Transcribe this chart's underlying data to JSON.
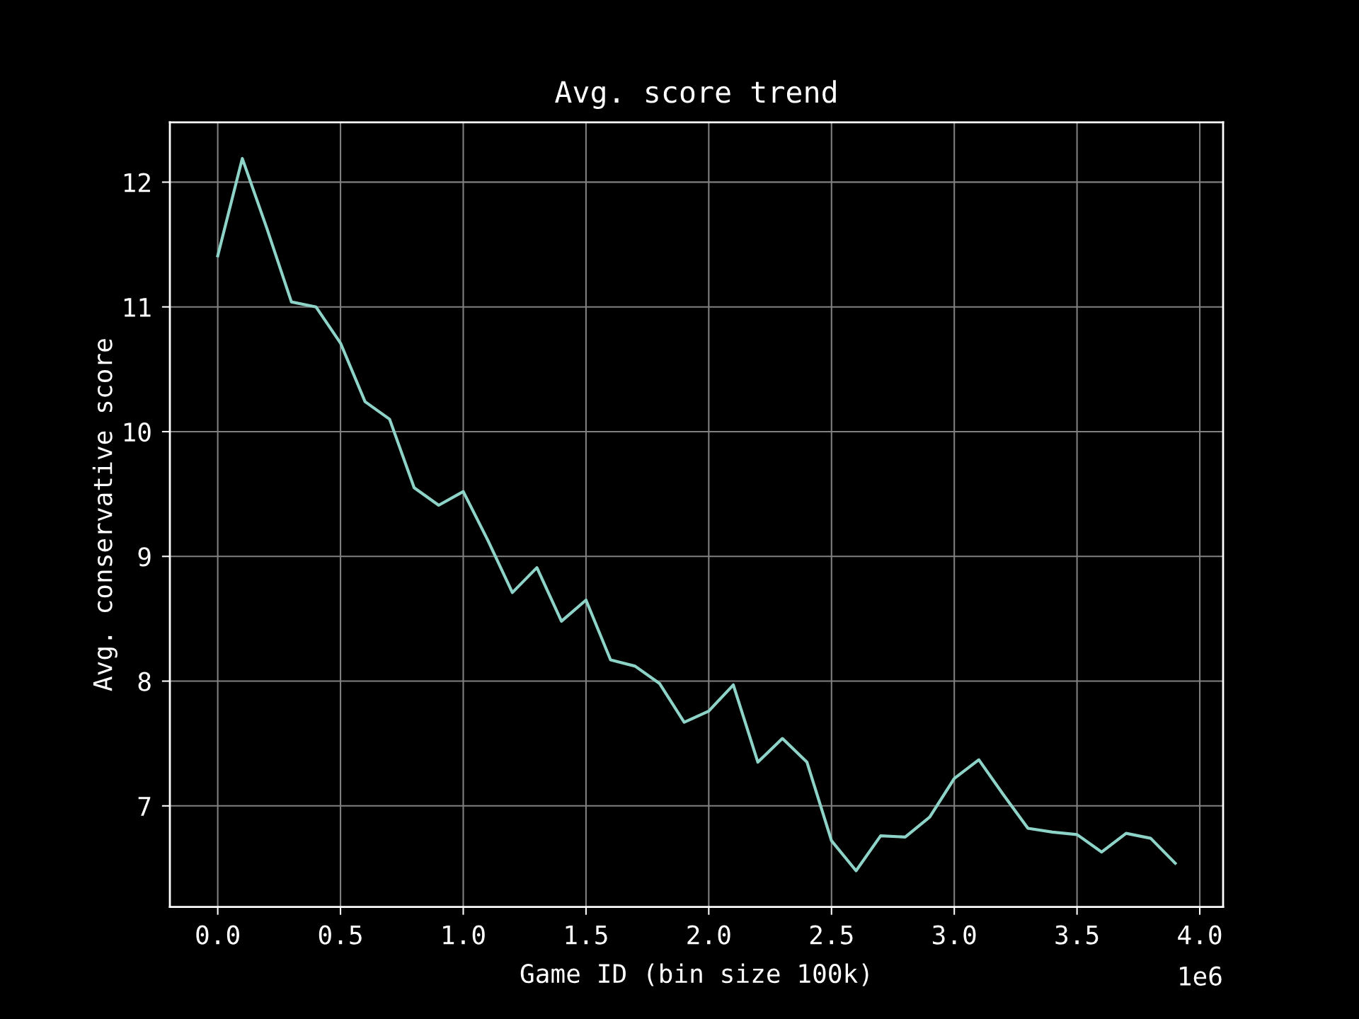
{
  "chart_data": {
    "type": "line",
    "title": "Avg. score trend",
    "xlabel": "Game ID (bin size 100k)",
    "ylabel": "Avg. conservative score",
    "x": [
      0,
      0.1,
      0.2,
      0.3,
      0.4,
      0.5,
      0.6,
      0.7,
      0.8,
      0.9,
      1.0,
      1.1,
      1.2,
      1.3,
      1.4,
      1.5,
      1.6,
      1.7,
      1.8,
      1.9,
      2.0,
      2.1,
      2.2,
      2.3,
      2.4,
      2.5,
      2.6,
      2.7,
      2.8,
      2.9,
      3.0,
      3.1,
      3.2,
      3.3,
      3.4,
      3.5,
      3.6,
      3.7,
      3.8,
      3.9
    ],
    "series": [
      {
        "color": "#8dd3c7",
        "values": [
          11.41,
          12.19,
          11.63,
          11.04,
          11.0,
          10.71,
          10.24,
          10.1,
          9.55,
          9.41,
          9.52,
          9.13,
          8.71,
          8.91,
          8.48,
          8.65,
          8.17,
          8.12,
          7.98,
          7.67,
          7.76,
          7.97,
          7.35,
          7.54,
          7.35,
          6.72,
          6.48,
          6.76,
          6.75,
          6.91,
          7.22,
          7.37,
          7.09,
          6.82,
          6.79,
          6.77,
          6.63,
          6.78,
          6.74,
          6.54
        ]
      }
    ],
    "xlim": [
      -0.195,
      4.095
    ],
    "ylim": [
      6.19,
      12.48
    ],
    "xticks": [
      {
        "value": 0,
        "label": "0.0"
      },
      0.5,
      {
        "value": 1,
        "label": "1.0"
      },
      1.5,
      {
        "value": 2,
        "label": "2.0"
      },
      2.5,
      {
        "value": 3,
        "label": "3.0"
      },
      3.5,
      {
        "value": 4,
        "label": "4.0"
      }
    ],
    "yticks": [
      7,
      8,
      9,
      10,
      11,
      12
    ],
    "annotations": [
      "1e6"
    ],
    "grid": true,
    "legend": false,
    "marker": "none",
    "line_style": "solid"
  }
}
